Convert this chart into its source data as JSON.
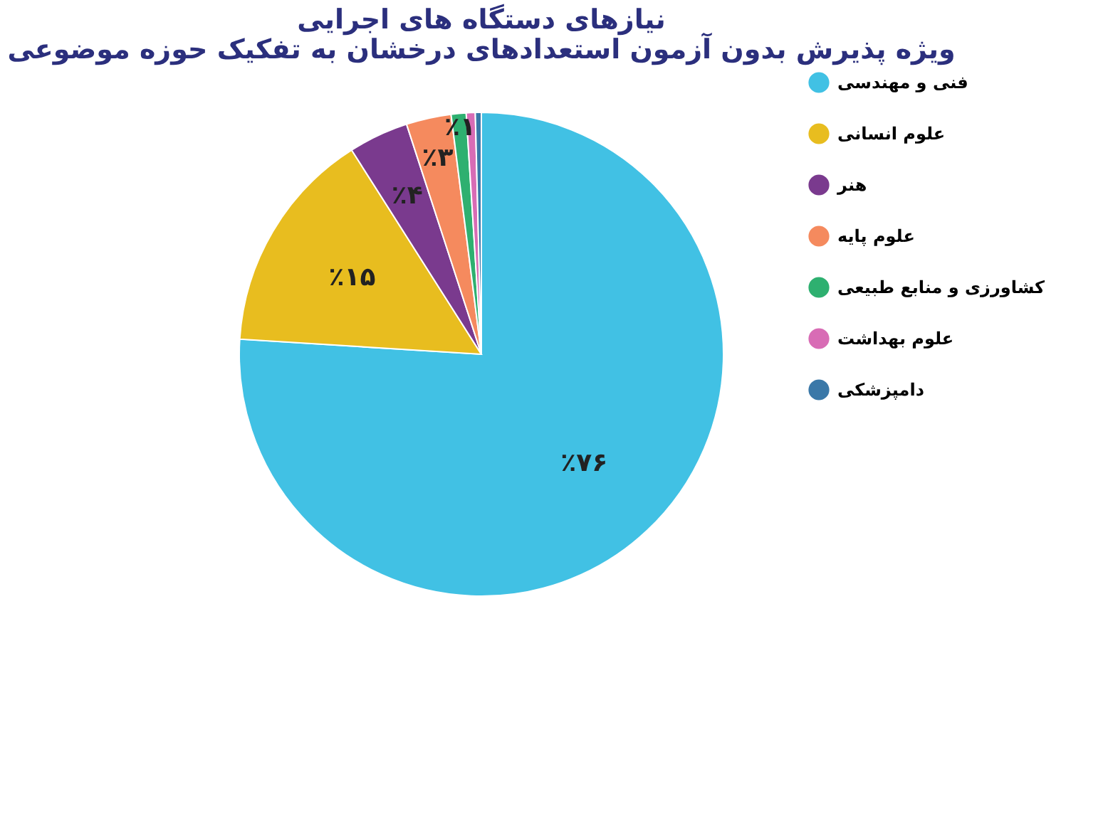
{
  "chart_data": {
    "type": "pie",
    "title": [
      "نیازهای دستگاه های اجرایی",
      "ویژه پذیرش بدون آزمون استعدادهای درخشان به تفکیک حوزه موضوعی"
    ],
    "categories": [
      "فنی و مهندسی",
      "علوم انسانی",
      "هنر",
      "علوم پایه",
      "کشاورزی و منابع طبیعی",
      "علوم بهداشت",
      "دامپزشکی"
    ],
    "values": [
      76,
      15,
      4,
      3,
      1,
      0.6,
      0.4
    ],
    "colors": [
      "#41c1e4",
      "#e8bd1f",
      "#7a3a8e",
      "#f58a5e",
      "#2eb070",
      "#d86cb5",
      "#3a78a8"
    ],
    "value_labels": [
      "٪۷۶",
      "٪۱۵",
      "٪۴",
      "٪۳",
      "٪۱",
      null,
      null
    ],
    "legend": "right"
  }
}
